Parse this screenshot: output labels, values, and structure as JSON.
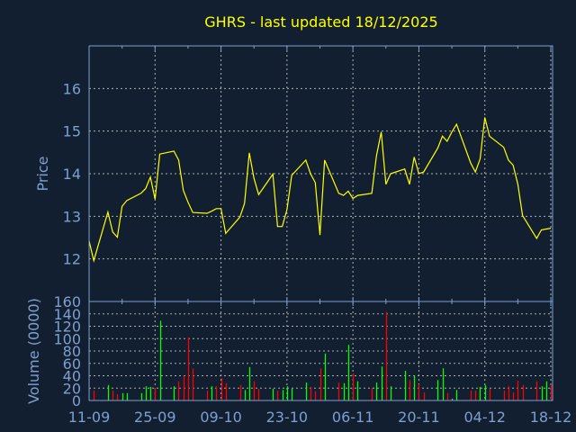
{
  "colors": {
    "background": "#111f30",
    "axis": "#7f9fcf",
    "grid": "#b0b0b0",
    "price_line": "#ffff00",
    "volume_up": "#00ff00",
    "volume_down": "#ff0000",
    "volume_flat": "#8fa0c0"
  },
  "chart_data": [
    {
      "type": "line",
      "title": "GHRS - last updated 18/12/2025",
      "xlabel": "",
      "ylabel": "Price",
      "ylim": [
        11,
        17
      ],
      "yticks": [
        "12",
        "13",
        "14",
        "15",
        "16"
      ],
      "xticks": [
        "11-09",
        "25-09",
        "09-10",
        "23-10",
        "06-11",
        "20-11",
        "04-12",
        "18-12"
      ],
      "xtick_dates": [
        "2025-09-11",
        "2025-09-25",
        "2025-10-09",
        "2025-10-23",
        "2025-11-06",
        "2025-11-20",
        "2025-12-04",
        "2025-12-18"
      ],
      "grid": true,
      "x": [
        "2025-09-11",
        "2025-09-12",
        "2025-09-15",
        "2025-09-16",
        "2025-09-17",
        "2025-09-18",
        "2025-09-19",
        "2025-09-22",
        "2025-09-23",
        "2025-09-24",
        "2025-09-25",
        "2025-09-26",
        "2025-09-29",
        "2025-09-30",
        "2025-10-01",
        "2025-10-02",
        "2025-10-03",
        "2025-10-06",
        "2025-10-07",
        "2025-10-08",
        "2025-10-09",
        "2025-10-10",
        "2025-10-13",
        "2025-10-14",
        "2025-10-15",
        "2025-10-16",
        "2025-10-17",
        "2025-10-20",
        "2025-10-21",
        "2025-10-22",
        "2025-10-23",
        "2025-10-24",
        "2025-10-27",
        "2025-10-28",
        "2025-10-29",
        "2025-10-30",
        "2025-10-31",
        "2025-11-03",
        "2025-11-04",
        "2025-11-05",
        "2025-11-06",
        "2025-11-07",
        "2025-11-10",
        "2025-11-11",
        "2025-11-12",
        "2025-11-13",
        "2025-11-14",
        "2025-11-17",
        "2025-11-18",
        "2025-11-19",
        "2025-11-20",
        "2025-11-21",
        "2025-11-24",
        "2025-11-25",
        "2025-11-26",
        "2025-11-27",
        "2025-11-28",
        "2025-12-01",
        "2025-12-02",
        "2025-12-03",
        "2025-12-04",
        "2025-12-05",
        "2025-12-08",
        "2025-12-09",
        "2025-12-10",
        "2025-12-11",
        "2025-12-12",
        "2025-12-15",
        "2025-12-16",
        "2025-12-17",
        "2025-12-18"
      ],
      "values": [
        12.42,
        11.96,
        13.1,
        12.63,
        12.51,
        13.23,
        13.37,
        13.54,
        13.65,
        13.92,
        13.4,
        14.46,
        14.53,
        14.32,
        13.61,
        13.33,
        13.09,
        13.07,
        13.12,
        13.18,
        13.18,
        12.6,
        12.98,
        13.3,
        14.49,
        13.89,
        13.51,
        13.99,
        12.76,
        12.76,
        13.16,
        13.96,
        14.32,
        14.0,
        13.79,
        12.56,
        14.32,
        13.54,
        13.49,
        13.59,
        13.42,
        13.49,
        13.54,
        14.42,
        14.98,
        13.75,
        14.0,
        14.11,
        13.75,
        14.39,
        14.0,
        14.04,
        14.6,
        14.88,
        14.76,
        14.98,
        15.16,
        14.25,
        14.04,
        14.35,
        15.32,
        14.88,
        14.62,
        14.32,
        14.2,
        13.75,
        13.02,
        12.48,
        12.68,
        12.7,
        12.72
      ]
    },
    {
      "type": "bar",
      "ylabel": "Volume (0000)",
      "ylim": [
        0,
        160
      ],
      "yticks": [
        "0",
        "20",
        "40",
        "60",
        "80",
        "100",
        "120",
        "140",
        "160"
      ],
      "grid": true,
      "values": [
        0,
        16,
        25,
        16,
        10,
        12,
        12,
        12,
        23,
        22,
        20,
        129,
        23,
        31,
        40,
        102,
        52,
        16,
        23,
        23,
        36,
        28,
        25,
        17,
        54,
        31,
        19,
        19,
        16,
        17,
        23,
        19,
        29,
        22,
        15,
        52,
        76,
        29,
        28,
        90,
        44,
        31,
        20,
        29,
        55,
        143,
        23,
        48,
        33,
        40,
        26,
        13,
        33,
        52,
        12,
        3,
        17,
        16,
        16,
        22,
        25,
        19,
        16,
        23,
        13,
        32,
        25,
        31,
        23,
        31,
        26
      ],
      "direction": [
        "flat",
        "down",
        "up",
        "down",
        "down",
        "up",
        "up",
        "up",
        "up",
        "up",
        "down",
        "up",
        "up",
        "down",
        "down",
        "down",
        "down",
        "down",
        "up",
        "down",
        "down",
        "down",
        "down",
        "up",
        "up",
        "down",
        "down",
        "up",
        "down",
        "up",
        "up",
        "up",
        "up",
        "down",
        "down",
        "down",
        "up",
        "down",
        "up",
        "up",
        "down",
        "up",
        "down",
        "up",
        "up",
        "down",
        "up",
        "up",
        "down",
        "up",
        "down",
        "down",
        "up",
        "up",
        "down",
        "flat",
        "up",
        "down",
        "down",
        "up",
        "up",
        "down",
        "down",
        "down",
        "down",
        "down",
        "down",
        "down",
        "up",
        "up",
        "down"
      ]
    }
  ]
}
